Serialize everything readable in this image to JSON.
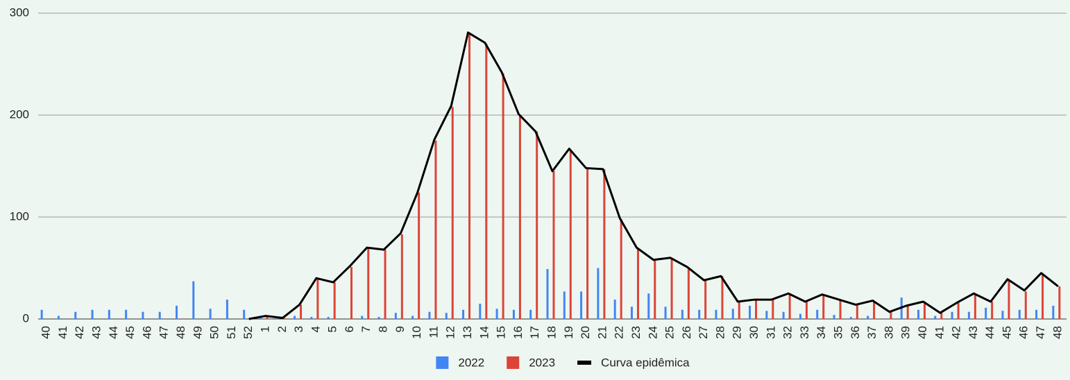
{
  "chart_data": {
    "type": "bar",
    "categories": [
      "40",
      "41",
      "42",
      "43",
      "44",
      "45",
      "46",
      "47",
      "48",
      "49",
      "50",
      "51",
      "52",
      "1",
      "2",
      "3",
      "4",
      "5",
      "6",
      "7",
      "8",
      "9",
      "10",
      "11",
      "12",
      "13",
      "14",
      "15",
      "16",
      "17",
      "18",
      "19",
      "20",
      "21",
      "22",
      "23",
      "24",
      "25",
      "26",
      "27",
      "28",
      "29",
      "30",
      "31",
      "32",
      "33",
      "34",
      "35",
      "36",
      "37",
      "38",
      "39",
      "40",
      "41",
      "42",
      "43",
      "44",
      "45",
      "46",
      "47",
      "48"
    ],
    "series": [
      {
        "name": "2022",
        "type": "bar",
        "color": "#4285f4",
        "values": [
          9,
          3,
          7,
          9,
          9,
          9,
          7,
          7,
          13,
          37,
          10,
          19,
          9,
          1,
          2,
          3,
          2,
          2,
          0,
          3,
          2,
          6,
          3,
          7,
          6,
          9,
          15,
          10,
          9,
          9,
          49,
          27,
          27,
          50,
          19,
          12,
          25,
          12,
          9,
          9,
          9,
          10,
          13,
          8,
          7,
          5,
          9,
          4,
          2,
          3,
          0,
          21,
          9,
          3,
          7,
          7,
          11,
          8,
          9,
          9,
          13
        ]
      },
      {
        "name": "2023",
        "type": "bar",
        "color": "#db4437",
        "values": [
          null,
          null,
          null,
          null,
          null,
          null,
          null,
          null,
          null,
          null,
          null,
          null,
          null,
          2,
          1,
          14,
          39,
          36,
          51,
          69,
          68,
          83,
          124,
          175,
          208,
          280,
          270,
          241,
          199,
          184,
          145,
          166,
          148,
          147,
          98,
          69,
          58,
          59,
          49,
          38,
          42,
          17,
          19,
          19,
          24,
          17,
          23,
          18,
          14,
          17,
          7,
          13,
          17,
          6,
          16,
          24,
          17,
          38,
          27,
          44,
          32
        ]
      },
      {
        "name": "Curva epidêmica",
        "type": "line",
        "color": "#000000",
        "values": [
          null,
          null,
          null,
          null,
          null,
          null,
          null,
          null,
          null,
          null,
          null,
          null,
          0,
          3,
          1,
          14,
          40,
          36,
          52,
          70,
          68,
          84,
          124,
          176,
          209,
          281,
          271,
          242,
          201,
          184,
          145,
          167,
          148,
          147,
          99,
          70,
          58,
          60,
          51,
          38,
          42,
          17,
          19,
          19,
          25,
          17,
          24,
          19,
          14,
          18,
          7,
          13,
          17,
          6,
          16,
          25,
          17,
          39,
          28,
          45,
          32
        ]
      }
    ],
    "ylim": [
      0,
      300
    ],
    "yticks": [
      0,
      100,
      200,
      300
    ],
    "grid": true
  }
}
